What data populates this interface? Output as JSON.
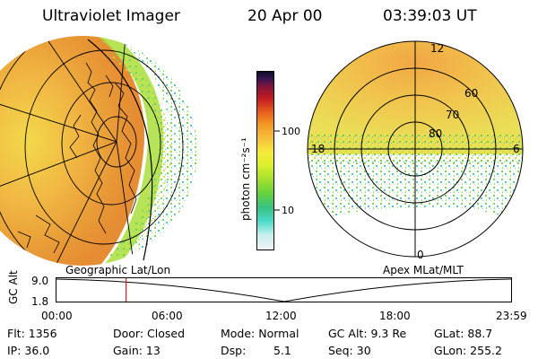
{
  "header": {
    "instrument": "Ultraviolet Imager",
    "date": "20 Apr 00",
    "time": "03:39:03 UT"
  },
  "colorbar": {
    "unit_label": "photon cm⁻²s⁻¹",
    "ticks": [
      "100",
      "10"
    ],
    "colors": [
      "#f2f2f2",
      "#4ad9c9",
      "#6ad23b",
      "#f6ea3a",
      "#f59a25",
      "#c41b22",
      "#0d0d25"
    ]
  },
  "left_panel": {
    "caption": "Geographic Lat/Lon"
  },
  "right_panel": {
    "caption": "Apex MLat/MLT",
    "lat_labels": [
      "80",
      "70",
      "60"
    ],
    "mlt_labels": {
      "noon": "12",
      "dawn": "6",
      "dusk": "18",
      "midnight": "0"
    }
  },
  "altitude_plot": {
    "axis_title": "GC Alt",
    "y_ticks": [
      "9.0",
      "1.8"
    ],
    "x_ticks": [
      "00:00",
      "06:00",
      "12:00",
      "18:00",
      "23:59"
    ],
    "current_time_fraction": 0.153,
    "marker_color": "#d02020"
  },
  "info": {
    "flt": "Flt: 1356",
    "ip": "IP: 36.0",
    "door": "Door: Closed",
    "gain": "Gain: 13",
    "mode": "Mode: Normal",
    "dsp_label": "Dsp:",
    "dsp_value": "5.1",
    "gc_alt": "GC Alt: 9.3 Re",
    "seq": "Seq: 30",
    "glat": "GLat: 88.7",
    "glon": "GLon: 255.2"
  }
}
